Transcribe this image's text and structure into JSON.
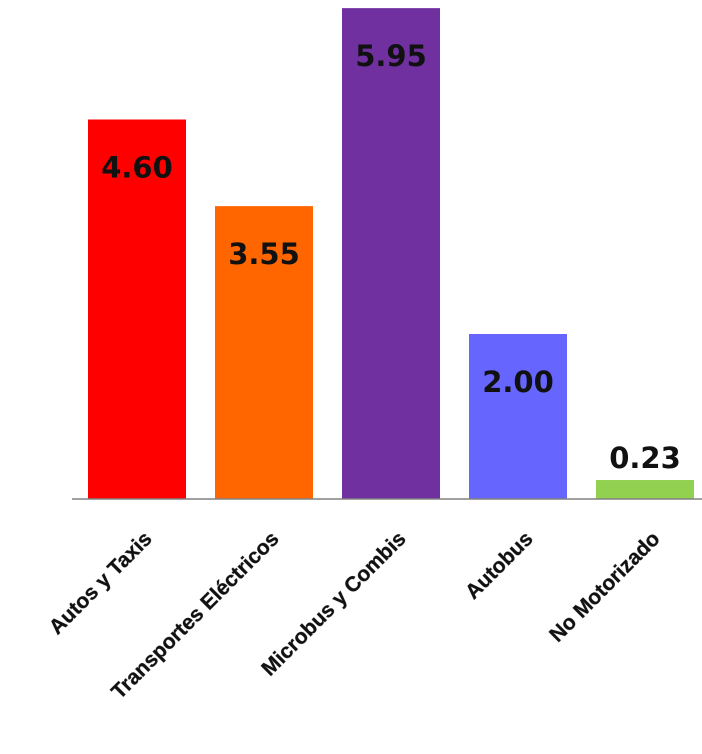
{
  "chart_data": {
    "type": "bar",
    "categories": [
      "Autos y Taxis",
      "Transportes Eléctricos",
      "Microbus y Combis",
      "Autobus",
      "No Motorizado"
    ],
    "values": [
      4.6,
      3.55,
      5.95,
      2.0,
      0.23
    ],
    "value_labels": [
      "4.60",
      "3.55",
      "5.95",
      "2.00",
      "0.23"
    ],
    "colors": [
      "#ff0000",
      "#ff6600",
      "#7030a0",
      "#6666ff",
      "#92d050"
    ],
    "title": "",
    "xlabel": "",
    "ylabel": "",
    "ylim": [
      0,
      6.0
    ],
    "grid": false,
    "legend": "none"
  }
}
